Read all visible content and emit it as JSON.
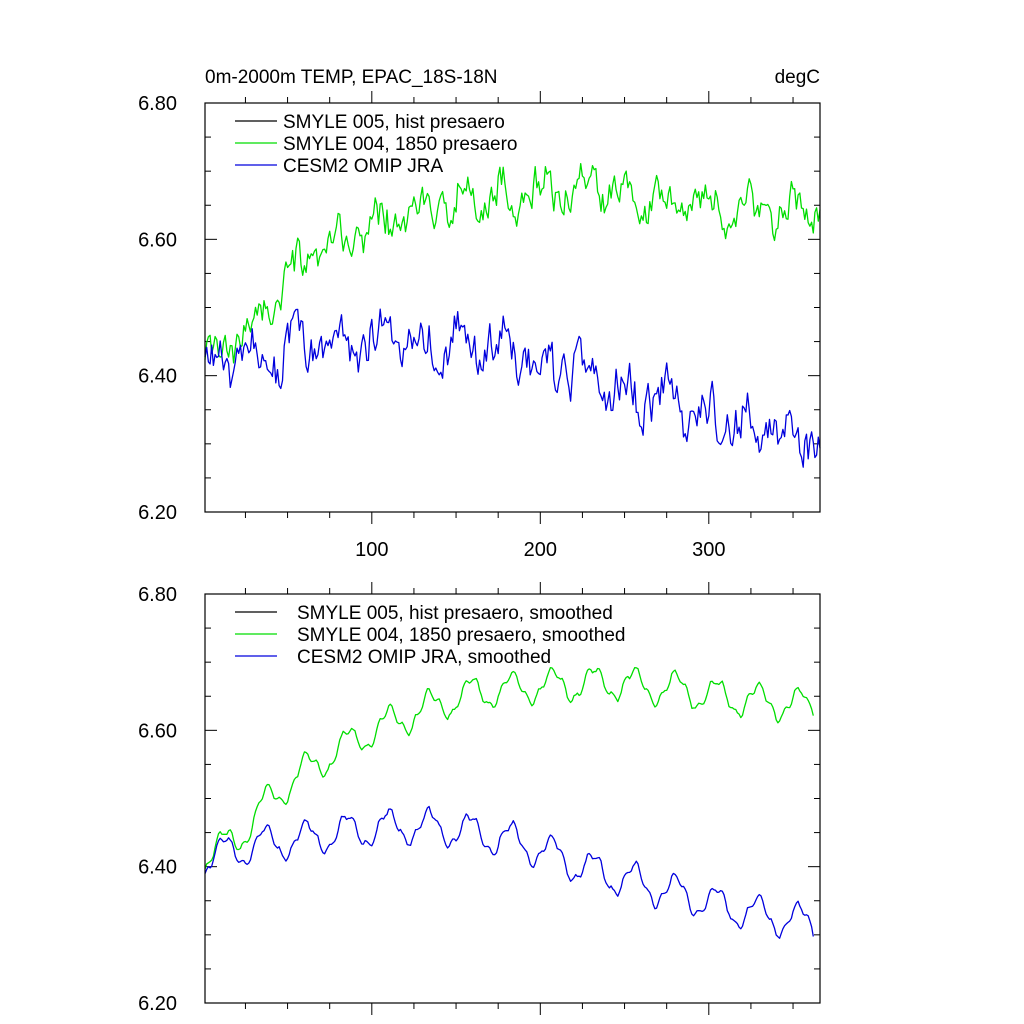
{
  "chart_data": [
    {
      "type": "line",
      "panel": "top",
      "title": "0m-2000m TEMP, EPAC_18S-18N",
      "units": "degC",
      "xlim": [
        1,
        366
      ],
      "ylim": [
        6.2,
        6.8
      ],
      "xticks": [
        100,
        200,
        300
      ],
      "xtick_labels": [
        "100",
        "200",
        "300"
      ],
      "yticks": [
        6.2,
        6.4,
        6.6,
        6.8
      ],
      "ytick_labels": [
        "6.20",
        "6.40",
        "6.60",
        "6.80"
      ],
      "legend_position": "top-left",
      "series": [
        {
          "name": "SMYLE 005, hist presaero",
          "color": "#000000",
          "values": [],
          "visible_in_plot": false
        },
        {
          "name": "SMYLE 004, 1850 presaero",
          "color": "#00dd00",
          "trend": {
            "x": [
              1,
              20,
              40,
              60,
              80,
              100,
              130,
              160,
              200,
              240,
              280,
              320,
              366
            ],
            "y": [
              6.41,
              6.45,
              6.51,
              6.56,
              6.59,
              6.62,
              6.64,
              6.66,
              6.67,
              6.68,
              6.66,
              6.64,
              6.64
            ]
          },
          "noise_amplitude": 0.045
        },
        {
          "name": "CESM2 OMIP JRA",
          "color": "#0000dd",
          "trend": {
            "x": [
              1,
              20,
              40,
              60,
              80,
              100,
              120,
              150,
              180,
              200,
              230,
              260,
              290,
              320,
              366
            ],
            "y": [
              6.41,
              6.42,
              6.43,
              6.44,
              6.45,
              6.45,
              6.46,
              6.45,
              6.44,
              6.42,
              6.39,
              6.37,
              6.35,
              6.33,
              6.31
            ]
          },
          "noise_amplitude": 0.055
        }
      ]
    },
    {
      "type": "line",
      "panel": "bottom",
      "title": "",
      "xlim": [
        1,
        366
      ],
      "ylim": [
        6.2,
        6.8
      ],
      "xticks": [
        100,
        200,
        300
      ],
      "yticks": [
        6.2,
        6.4,
        6.6,
        6.8
      ],
      "ytick_labels": [
        "6.20",
        "6.40",
        "6.60",
        "6.80"
      ],
      "legend_position": "top-left",
      "series": [
        {
          "name": "SMYLE 005, hist presaero, smoothed",
          "color": "#000000",
          "values": [],
          "visible_in_plot": false
        },
        {
          "name": "SMYLE 004, 1850 presaero, smoothed",
          "color": "#00dd00",
          "trend": {
            "x": [
              1,
              20,
              40,
              60,
              80,
              100,
              130,
              160,
              200,
              240,
              280,
              320,
              362
            ],
            "y": [
              6.415,
              6.44,
              6.5,
              6.54,
              6.57,
              6.6,
              6.63,
              6.655,
              6.665,
              6.67,
              6.66,
              6.645,
              6.635
            ]
          },
          "seasonal_amplitude": 0.022
        },
        {
          "name": "CESM2 OMIP JRA, smoothed",
          "color": "#0000dd",
          "trend": {
            "x": [
              1,
              20,
              40,
              60,
              80,
              100,
              120,
              150,
              180,
              200,
              230,
              260,
              290,
              320,
              362
            ],
            "y": [
              6.41,
              6.425,
              6.435,
              6.44,
              6.45,
              6.455,
              6.46,
              6.455,
              6.44,
              6.425,
              6.395,
              6.375,
              6.355,
              6.335,
              6.315
            ]
          },
          "seasonal_amplitude": 0.024
        }
      ]
    }
  ]
}
